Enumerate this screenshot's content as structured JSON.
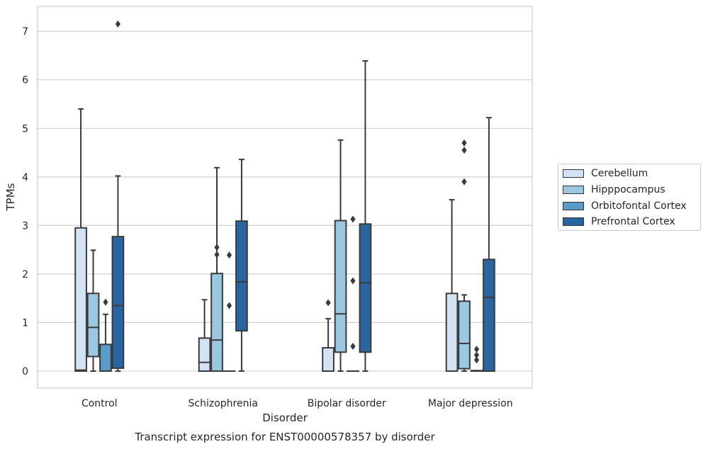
{
  "chart_data": {
    "type": "boxplot",
    "title": "Transcript expression for ENST00000578357 by disorder",
    "xlabel": "Disorder",
    "ylabel": "TPMs",
    "ylim": [
      -0.35,
      7.55
    ],
    "yticks": [
      0,
      1,
      2,
      3,
      4,
      5,
      6,
      7
    ],
    "grid": true,
    "legend_position": "right",
    "categories": [
      "Control",
      "Schizophrenia",
      "Bipolar disorder",
      "Major depression"
    ],
    "series": [
      {
        "name": "Cerebellum",
        "color": "#d2e3f3",
        "boxes": [
          {
            "whisker_low": 0,
            "q1": 0,
            "median": 0.02,
            "q3": 2.95,
            "whisker_high": 5.4,
            "outliers": []
          },
          {
            "whisker_low": 0,
            "q1": 0,
            "median": 0.18,
            "q3": 0.68,
            "whisker_high": 1.47,
            "outliers": []
          },
          {
            "whisker_low": 0,
            "q1": 0,
            "median": 0,
            "q3": 0.48,
            "whisker_high": 1.08,
            "outliers": [
              1.41
            ]
          },
          {
            "whisker_low": 0,
            "q1": 0,
            "median": 0,
            "q3": 1.6,
            "whisker_high": 3.53,
            "outliers": []
          }
        ]
      },
      {
        "name": "Hipppocampus",
        "color": "#9ac8e0",
        "boxes": [
          {
            "whisker_low": 0,
            "q1": 0.3,
            "median": 0.9,
            "q3": 1.6,
            "whisker_high": 2.49,
            "outliers": []
          },
          {
            "whisker_low": 0,
            "q1": 0,
            "median": 0.64,
            "q3": 2.01,
            "whisker_high": 4.19,
            "outliers": [
              2.4,
              2.55
            ]
          },
          {
            "whisker_low": 0,
            "q1": 0.39,
            "median": 1.18,
            "q3": 3.1,
            "whisker_high": 4.76,
            "outliers": []
          },
          {
            "whisker_low": 0,
            "q1": 0.05,
            "median": 0.57,
            "q3": 1.44,
            "whisker_high": 1.57,
            "outliers": [
              3.9,
              4.55,
              4.7
            ]
          }
        ]
      },
      {
        "name": "Orbitofontal Cortex",
        "color": "#5b9bc8",
        "boxes": [
          {
            "whisker_low": 0,
            "q1": 0,
            "median": 0,
            "q3": 0.55,
            "whisker_high": 1.17,
            "outliers": [
              1.42
            ]
          },
          {
            "whisker_low": 0,
            "q1": 0,
            "median": 0,
            "q3": 0,
            "whisker_high": 0,
            "outliers": [
              1.35,
              2.39
            ]
          },
          {
            "whisker_low": 0,
            "q1": 0,
            "median": 0,
            "q3": 0,
            "whisker_high": 0,
            "outliers": [
              0.51,
              1.86,
              3.13
            ]
          },
          {
            "whisker_low": 0,
            "q1": 0,
            "median": 0,
            "q3": 0.01,
            "whisker_high": 0.01,
            "outliers": [
              0.23,
              0.33,
              0.45
            ]
          }
        ]
      },
      {
        "name": "Prefrontal Cortex",
        "color": "#2865a1",
        "boxes": [
          {
            "whisker_low": 0,
            "q1": 0.06,
            "median": 1.35,
            "q3": 2.77,
            "whisker_high": 4.02,
            "outliers": [
              7.15
            ]
          },
          {
            "whisker_low": 0,
            "q1": 0.83,
            "median": 1.84,
            "q3": 3.09,
            "whisker_high": 4.36,
            "outliers": []
          },
          {
            "whisker_low": 0,
            "q1": 0.39,
            "median": 1.82,
            "q3": 3.03,
            "whisker_high": 6.39,
            "outliers": []
          },
          {
            "whisker_low": 0,
            "q1": 0,
            "median": 1.52,
            "q3": 2.3,
            "whisker_high": 5.22,
            "outliers": []
          }
        ]
      }
    ]
  }
}
